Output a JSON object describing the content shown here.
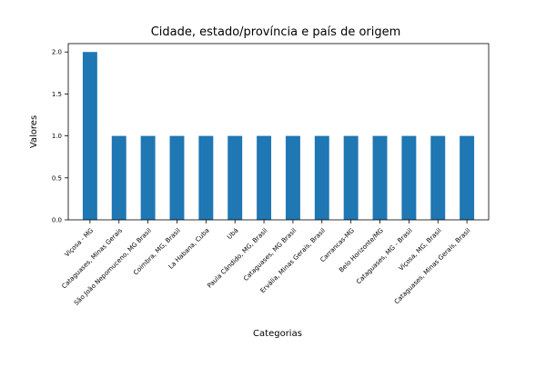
{
  "chart_data": {
    "type": "bar",
    "title": "Cidade, estado/província e país de origem",
    "xlabel": "Categorias",
    "ylabel": "Valores",
    "ylim": [
      0,
      2.1
    ],
    "yticks": [
      "0.0",
      "0.5",
      "1.0",
      "1.5",
      "2.0"
    ],
    "ytick_values": [
      0,
      0.5,
      1.0,
      1.5,
      2.0
    ],
    "grid": false,
    "bar_color": "#1f77b4",
    "categories": [
      "Viçosa - MG",
      "Cataguases, Minas Gerais",
      "São João Nepomuceno, MG Brasil",
      "Coimbra, MG, Brasil",
      "La Habana, Cuba",
      "Ubá",
      "Paula Cândido, MG, Brasil",
      "Cataguases, MG Brasil",
      "Ervália, Minas Gerais, Brasil",
      "Carrancas-MG",
      "Belo Horizonte/MG",
      "Cataguases, MG - Brasil",
      "Viçosa, MG, Brasil",
      "Cataguases, Minas Gerais, Brasil"
    ],
    "values": [
      2,
      1,
      1,
      1,
      1,
      1,
      1,
      1,
      1,
      1,
      1,
      1,
      1,
      1
    ]
  }
}
